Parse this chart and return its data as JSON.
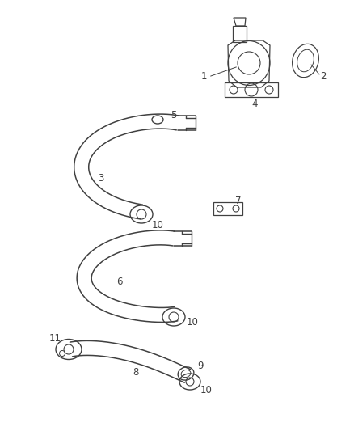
{
  "bg_color": "#ffffff",
  "line_color": "#404040",
  "label_color": "#404040",
  "label_fontsize": 8.5,
  "figsize": [
    4.38,
    5.33
  ],
  "dpi": 100
}
